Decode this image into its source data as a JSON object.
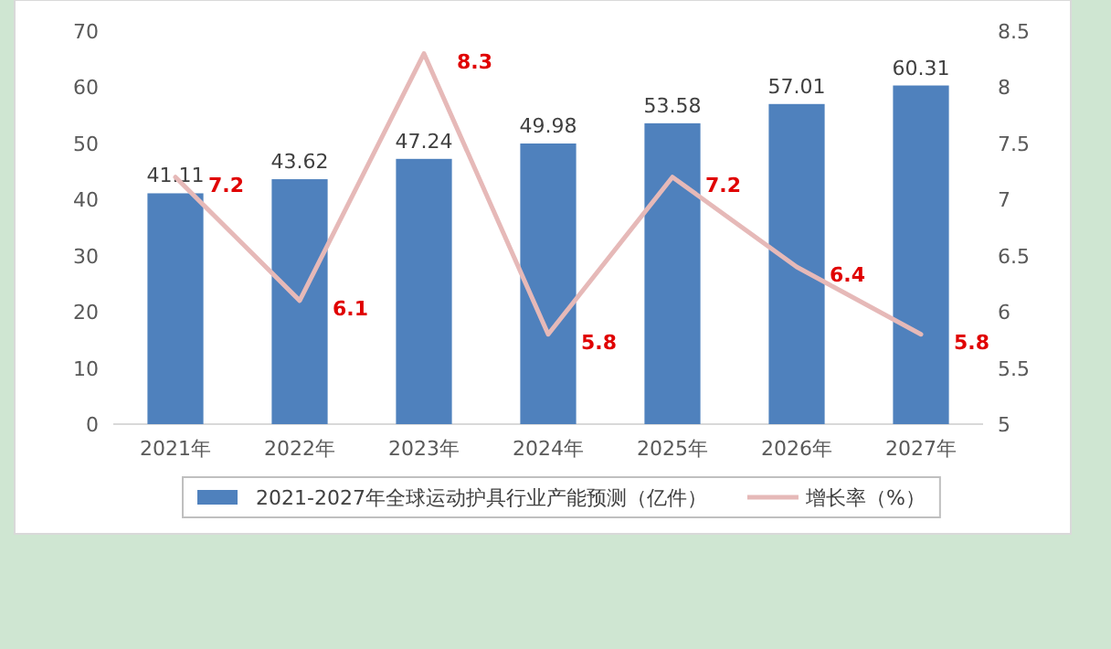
{
  "chart_data": {
    "type": "bar",
    "categories": [
      "2021年",
      "2022年",
      "2023年",
      "2024年",
      "2025年",
      "2026年",
      "2027年"
    ],
    "series": [
      {
        "name": "2021-2027年全球运动护具行业产能预测（亿件）",
        "color": "#4f81bd",
        "values": [
          41.11,
          43.62,
          47.24,
          49.98,
          53.58,
          57.01,
          60.31
        ]
      },
      {
        "name": "增长率（%）",
        "type": "line",
        "axis": "y2",
        "color": "#e6b9b8",
        "values": [
          7.2,
          6.1,
          8.3,
          5.8,
          7.2,
          6.4,
          5.8
        ]
      }
    ],
    "ylim": [
      0,
      70
    ],
    "yticks": [
      0,
      10,
      20,
      30,
      40,
      50,
      60,
      70
    ],
    "y2lim": [
      5,
      8.5
    ],
    "y2ticks": [
      5,
      5.5,
      6,
      6.5,
      7,
      7.5,
      8,
      8.5
    ],
    "data_labels": true,
    "legend": "bottom"
  }
}
